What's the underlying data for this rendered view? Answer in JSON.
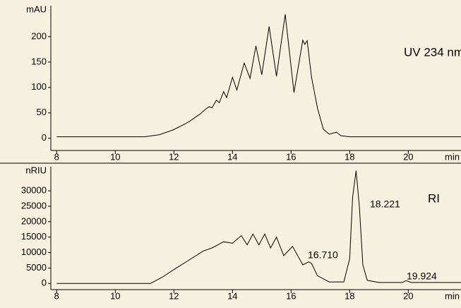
{
  "chart_data": [
    {
      "type": "line",
      "y_label": "mAU",
      "x_label": "min",
      "annotations": [
        "UV 234 nm"
      ],
      "x": [
        8,
        11,
        11.5,
        12,
        12.5,
        12.9,
        13.1,
        13.2,
        13.3,
        13.45,
        13.55,
        13.7,
        13.8,
        14.0,
        14.15,
        14.4,
        14.6,
        14.8,
        15.0,
        15.25,
        15.5,
        15.8,
        16.1,
        16.4,
        16.47,
        16.55,
        16.7,
        16.9,
        17.1,
        17.3,
        17.55,
        17.7,
        18,
        21.8
      ],
      "values": [
        3,
        3,
        7,
        17,
        32,
        48,
        58,
        62,
        60,
        75,
        70,
        92,
        80,
        120,
        95,
        148,
        118,
        182,
        125,
        220,
        122,
        244,
        90,
        193,
        185,
        192,
        120,
        60,
        18,
        8,
        12,
        5,
        3,
        3
      ],
      "color": "#000000",
      "xlim": [
        7.8,
        21.8
      ],
      "xticks": [
        8,
        10,
        12,
        14,
        16,
        18,
        20
      ],
      "ylim": [
        -24,
        261
      ],
      "yticks": [
        0,
        50,
        100,
        150,
        200
      ]
    },
    {
      "type": "line",
      "y_label": "nRIU",
      "x_label": "min",
      "annotations": [
        "16.710",
        "18.221",
        "19.924",
        "RI"
      ],
      "x": [
        8,
        11.2,
        11.6,
        12,
        12.5,
        13,
        13.3,
        13.5,
        13.7,
        14.0,
        14.3,
        14.5,
        14.7,
        14.9,
        15.1,
        15.3,
        15.5,
        15.75,
        16.05,
        16.4,
        16.6,
        16.7,
        16.9,
        17.3,
        17.8,
        18.0,
        18.1,
        18.22,
        18.33,
        18.45,
        18.6,
        19,
        19.8,
        19.92,
        20.1,
        21.8
      ],
      "values": [
        0,
        0,
        2000,
        4500,
        7500,
        10500,
        11500,
        12500,
        13500,
        13000,
        15500,
        12500,
        16000,
        12500,
        16000,
        11500,
        15000,
        9000,
        12000,
        6000,
        7000,
        6500,
        2500,
        500,
        500,
        8000,
        28000,
        36500,
        25000,
        6000,
        1000,
        300,
        300,
        900,
        300,
        300
      ],
      "color": "#000000",
      "xlim": [
        7.8,
        21.8
      ],
      "xticks": [
        8,
        10,
        12,
        14,
        16,
        18,
        20
      ],
      "ylim": [
        -2000,
        37800
      ],
      "yticks": [
        0,
        5000,
        10000,
        15000,
        20000,
        25000,
        30000
      ]
    }
  ]
}
